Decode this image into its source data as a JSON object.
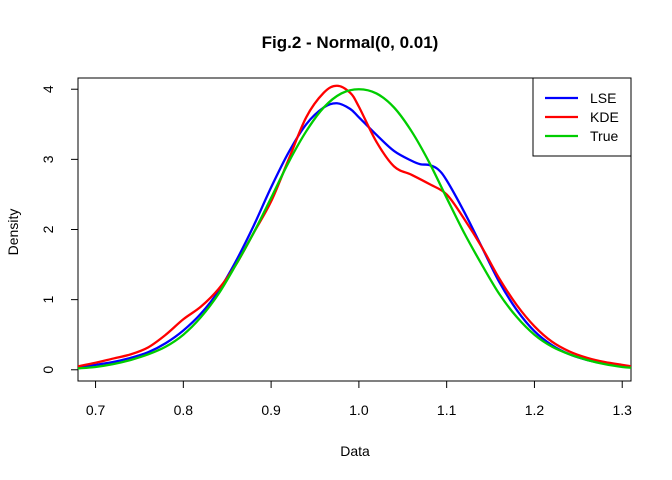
{
  "chart_data": {
    "type": "line",
    "title": "Fig.2 - Normal(0, 0.01)",
    "xlabel": "Data",
    "ylabel": "Density",
    "xlim": [
      0.68,
      1.31
    ],
    "ylim": [
      -0.16,
      4.16
    ],
    "x_ticks": [
      0.7,
      0.8,
      0.9,
      1.0,
      1.1,
      1.2,
      1.3
    ],
    "x_tick_labels": [
      "0.7",
      "0.8",
      "0.9",
      "1.0",
      "1.1",
      "1.2",
      "1.3"
    ],
    "y_ticks": [
      0,
      1,
      2,
      3,
      4
    ],
    "y_tick_labels": [
      "0",
      "1",
      "2",
      "3",
      "4"
    ],
    "grid": false,
    "legend": {
      "position": "top-right"
    },
    "series": [
      {
        "name": "LSE",
        "color": "#0000ff",
        "points": [
          [
            0.68,
            0.04
          ],
          [
            0.7,
            0.07
          ],
          [
            0.72,
            0.11
          ],
          [
            0.74,
            0.17
          ],
          [
            0.76,
            0.25
          ],
          [
            0.78,
            0.38
          ],
          [
            0.8,
            0.56
          ],
          [
            0.82,
            0.8
          ],
          [
            0.84,
            1.12
          ],
          [
            0.86,
            1.55
          ],
          [
            0.88,
            2.05
          ],
          [
            0.9,
            2.6
          ],
          [
            0.92,
            3.1
          ],
          [
            0.94,
            3.5
          ],
          [
            0.96,
            3.74
          ],
          [
            0.975,
            3.8
          ],
          [
            0.99,
            3.72
          ],
          [
            1.0,
            3.6
          ],
          [
            1.02,
            3.35
          ],
          [
            1.04,
            3.12
          ],
          [
            1.06,
            2.98
          ],
          [
            1.07,
            2.93
          ],
          [
            1.08,
            2.92
          ],
          [
            1.09,
            2.86
          ],
          [
            1.1,
            2.7
          ],
          [
            1.12,
            2.25
          ],
          [
            1.14,
            1.75
          ],
          [
            1.16,
            1.25
          ],
          [
            1.18,
            0.85
          ],
          [
            1.2,
            0.55
          ],
          [
            1.22,
            0.35
          ],
          [
            1.24,
            0.22
          ],
          [
            1.26,
            0.14
          ],
          [
            1.28,
            0.09
          ],
          [
            1.3,
            0.06
          ],
          [
            1.31,
            0.05
          ]
        ]
      },
      {
        "name": "KDE",
        "color": "#ff0000",
        "points": [
          [
            0.68,
            0.05
          ],
          [
            0.7,
            0.1
          ],
          [
            0.72,
            0.16
          ],
          [
            0.74,
            0.22
          ],
          [
            0.76,
            0.32
          ],
          [
            0.78,
            0.5
          ],
          [
            0.8,
            0.72
          ],
          [
            0.82,
            0.9
          ],
          [
            0.84,
            1.15
          ],
          [
            0.86,
            1.5
          ],
          [
            0.88,
            1.95
          ],
          [
            0.9,
            2.4
          ],
          [
            0.92,
            3.0
          ],
          [
            0.94,
            3.6
          ],
          [
            0.96,
            3.95
          ],
          [
            0.975,
            4.05
          ],
          [
            0.99,
            3.95
          ],
          [
            1.0,
            3.75
          ],
          [
            1.02,
            3.25
          ],
          [
            1.04,
            2.9
          ],
          [
            1.06,
            2.78
          ],
          [
            1.08,
            2.65
          ],
          [
            1.1,
            2.5
          ],
          [
            1.12,
            2.15
          ],
          [
            1.14,
            1.75
          ],
          [
            1.16,
            1.3
          ],
          [
            1.18,
            0.92
          ],
          [
            1.2,
            0.62
          ],
          [
            1.22,
            0.4
          ],
          [
            1.24,
            0.26
          ],
          [
            1.26,
            0.17
          ],
          [
            1.28,
            0.11
          ],
          [
            1.3,
            0.07
          ],
          [
            1.31,
            0.05
          ]
        ]
      },
      {
        "name": "True",
        "color": "#00cd00",
        "points": [
          [
            0.68,
            0.02
          ],
          [
            0.7,
            0.04
          ],
          [
            0.72,
            0.08
          ],
          [
            0.74,
            0.14
          ],
          [
            0.76,
            0.22
          ],
          [
            0.78,
            0.33
          ],
          [
            0.8,
            0.5
          ],
          [
            0.82,
            0.75
          ],
          [
            0.84,
            1.08
          ],
          [
            0.86,
            1.5
          ],
          [
            0.88,
            1.95
          ],
          [
            0.9,
            2.45
          ],
          [
            0.92,
            2.96
          ],
          [
            0.94,
            3.4
          ],
          [
            0.96,
            3.74
          ],
          [
            0.98,
            3.94
          ],
          [
            1.0,
            4.0
          ],
          [
            1.02,
            3.94
          ],
          [
            1.04,
            3.74
          ],
          [
            1.06,
            3.4
          ],
          [
            1.08,
            2.96
          ],
          [
            1.1,
            2.45
          ],
          [
            1.12,
            1.95
          ],
          [
            1.14,
            1.5
          ],
          [
            1.16,
            1.08
          ],
          [
            1.18,
            0.75
          ],
          [
            1.2,
            0.5
          ],
          [
            1.22,
            0.33
          ],
          [
            1.24,
            0.22
          ],
          [
            1.26,
            0.14
          ],
          [
            1.28,
            0.08
          ],
          [
            1.3,
            0.04
          ],
          [
            1.31,
            0.03
          ]
        ]
      }
    ]
  }
}
